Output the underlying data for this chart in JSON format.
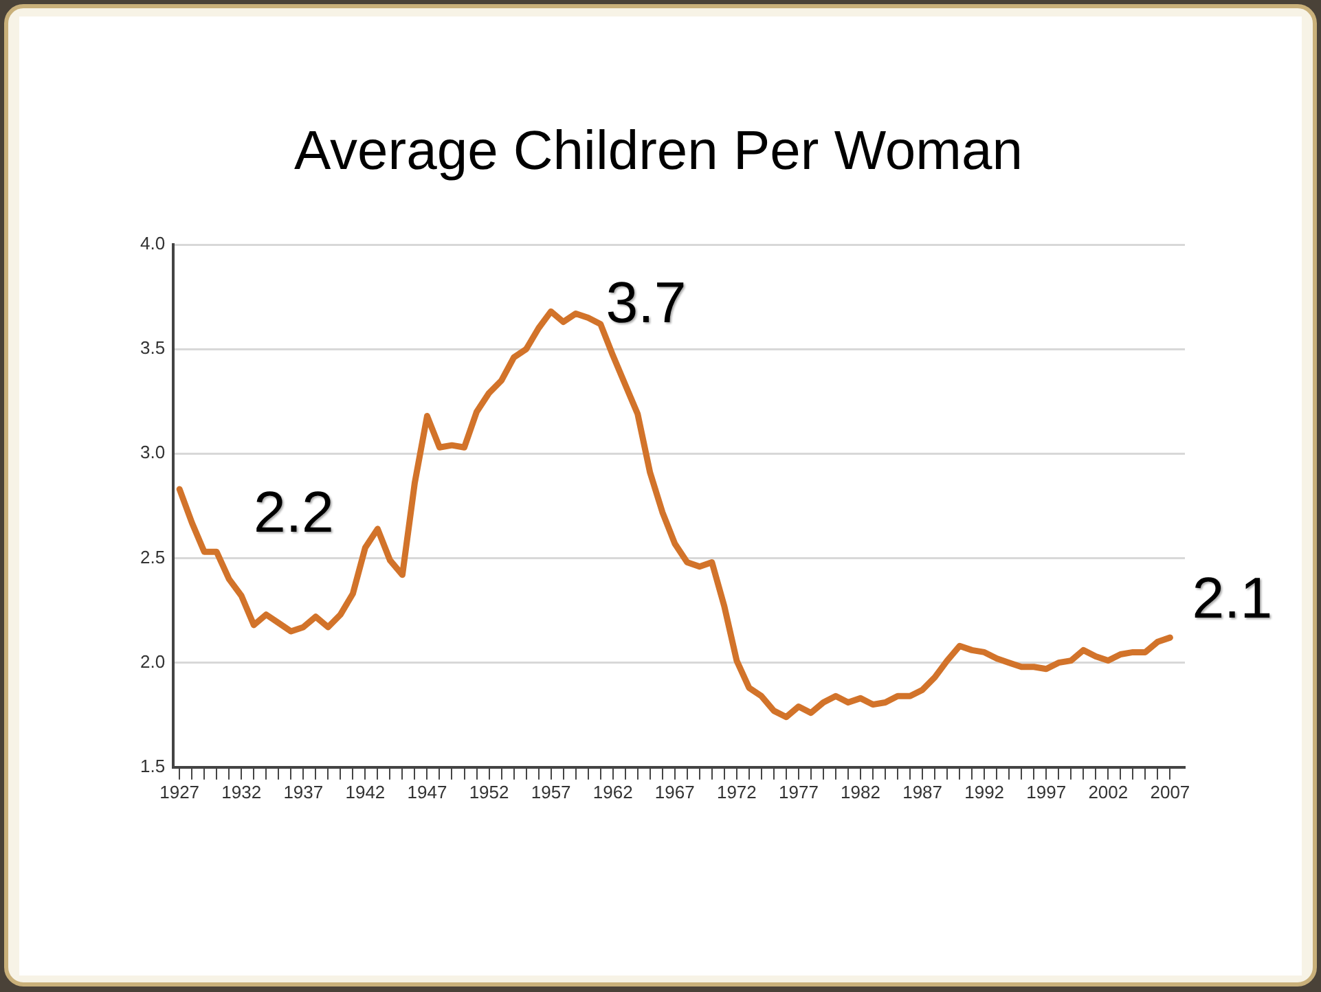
{
  "chart_data": {
    "type": "line",
    "title": "Average Children Per Woman",
    "x": [
      1927,
      1928,
      1929,
      1930,
      1931,
      1932,
      1933,
      1934,
      1935,
      1936,
      1937,
      1938,
      1939,
      1940,
      1941,
      1942,
      1943,
      1944,
      1945,
      1946,
      1947,
      1948,
      1949,
      1950,
      1951,
      1952,
      1953,
      1954,
      1955,
      1956,
      1957,
      1958,
      1959,
      1960,
      1961,
      1962,
      1963,
      1964,
      1965,
      1966,
      1967,
      1968,
      1969,
      1970,
      1971,
      1972,
      1973,
      1974,
      1975,
      1976,
      1977,
      1978,
      1979,
      1980,
      1981,
      1982,
      1983,
      1984,
      1985,
      1986,
      1987,
      1988,
      1989,
      1990,
      1991,
      1992,
      1993,
      1994,
      1995,
      1996,
      1997,
      1998,
      1999,
      2000,
      2001,
      2002,
      2003,
      2004,
      2005,
      2006,
      2007
    ],
    "series": [
      {
        "color": "#d2732a",
        "values": [
          2.83,
          2.67,
          2.53,
          2.53,
          2.4,
          2.32,
          2.18,
          2.23,
          2.19,
          2.15,
          2.17,
          2.22,
          2.17,
          2.23,
          2.33,
          2.55,
          2.64,
          2.49,
          2.42,
          2.86,
          3.18,
          3.03,
          3.04,
          3.03,
          3.2,
          3.29,
          3.35,
          3.46,
          3.5,
          3.6,
          3.68,
          3.63,
          3.67,
          3.65,
          3.62,
          3.47,
          3.33,
          3.19,
          2.91,
          2.72,
          2.57,
          2.48,
          2.46,
          2.48,
          2.27,
          2.01,
          1.88,
          1.84,
          1.77,
          1.74,
          1.79,
          1.76,
          1.81,
          1.84,
          1.81,
          1.83,
          1.8,
          1.81,
          1.84,
          1.84,
          1.87,
          1.93,
          2.01,
          2.08,
          2.06,
          2.05,
          2.02,
          2.0,
          1.98,
          1.98,
          1.97,
          2.0,
          2.01,
          2.06,
          2.03,
          2.01,
          2.04,
          2.05,
          2.05,
          2.1,
          2.12
        ]
      }
    ],
    "xlim": [
      1926.5,
      2008.2
    ],
    "xticks": [
      1927,
      {
        "value": 1928,
        "label": null
      },
      {
        "value": 1929,
        "label": null
      },
      {
        "value": 1930,
        "label": null
      },
      {
        "value": 1931,
        "label": null
      },
      1932,
      {
        "value": 1933,
        "label": null
      },
      {
        "value": 1934,
        "label": null
      },
      {
        "value": 1935,
        "label": null
      },
      {
        "value": 1936,
        "label": null
      },
      1937,
      {
        "value": 1938,
        "label": null
      },
      {
        "value": 1939,
        "label": null
      },
      {
        "value": 1940,
        "label": null
      },
      {
        "value": 1941,
        "label": null
      },
      1942,
      {
        "value": 1943,
        "label": null
      },
      {
        "value": 1944,
        "label": null
      },
      {
        "value": 1945,
        "label": null
      },
      {
        "value": 1946,
        "label": null
      },
      1947,
      {
        "value": 1948,
        "label": null
      },
      {
        "value": 1949,
        "label": null
      },
      {
        "value": 1950,
        "label": null
      },
      {
        "value": 1951,
        "label": null
      },
      1952,
      {
        "value": 1953,
        "label": null
      },
      {
        "value": 1954,
        "label": null
      },
      {
        "value": 1955,
        "label": null
      },
      {
        "value": 1956,
        "label": null
      },
      1957,
      {
        "value": 1958,
        "label": null
      },
      {
        "value": 1959,
        "label": null
      },
      {
        "value": 1960,
        "label": null
      },
      {
        "value": 1961,
        "label": null
      },
      1962,
      {
        "value": 1963,
        "label": null
      },
      {
        "value": 1964,
        "label": null
      },
      {
        "value": 1965,
        "label": null
      },
      {
        "value": 1966,
        "label": null
      },
      1967,
      {
        "value": 1968,
        "label": null
      },
      {
        "value": 1969,
        "label": null
      },
      {
        "value": 1970,
        "label": null
      },
      {
        "value": 1971,
        "label": null
      },
      1972,
      {
        "value": 1973,
        "label": null
      },
      {
        "value": 1974,
        "label": null
      },
      {
        "value": 1975,
        "label": null
      },
      {
        "value": 1976,
        "label": null
      },
      1977,
      {
        "value": 1978,
        "label": null
      },
      {
        "value": 1979,
        "label": null
      },
      {
        "value": 1980,
        "label": null
      },
      {
        "value": 1981,
        "label": null
      },
      1982,
      {
        "value": 1983,
        "label": null
      },
      {
        "value": 1984,
        "label": null
      },
      {
        "value": 1985,
        "label": null
      },
      {
        "value": 1986,
        "label": null
      },
      1987,
      {
        "value": 1988,
        "label": null
      },
      {
        "value": 1989,
        "label": null
      },
      {
        "value": 1990,
        "label": null
      },
      {
        "value": 1991,
        "label": null
      },
      1992,
      {
        "value": 1993,
        "label": null
      },
      {
        "value": 1994,
        "label": null
      },
      {
        "value": 1995,
        "label": null
      },
      {
        "value": 1996,
        "label": null
      },
      1997,
      {
        "value": 1998,
        "label": null
      },
      {
        "value": 1999,
        "label": null
      },
      {
        "value": 2000,
        "label": null
      },
      {
        "value": 2001,
        "label": null
      },
      2002,
      {
        "value": 2003,
        "label": null
      },
      {
        "value": 2004,
        "label": null
      },
      {
        "value": 2005,
        "label": null
      },
      {
        "value": 2006,
        "label": null
      },
      2007
    ],
    "ylim": [
      1.5,
      4.0
    ],
    "yticks": [
      {
        "value": 1.5,
        "label": "1.5"
      },
      {
        "value": 2.0,
        "label": "2.0"
      },
      {
        "value": 2.5,
        "label": "2.5"
      },
      {
        "value": 3.0,
        "label": "3.0"
      },
      {
        "value": 3.5,
        "label": "3.5"
      },
      {
        "value": 4.0,
        "label": "4.0"
      }
    ],
    "grid": "y",
    "marker": "none",
    "line_style": "solid",
    "legend": false,
    "annotations": [
      {
        "text": "2.2",
        "x": 1936,
        "y": 2.15
      },
      {
        "text": "3.7",
        "x": 1957,
        "y": 3.68
      },
      {
        "text": "2.1",
        "x": 2007,
        "y": 2.12
      }
    ]
  }
}
